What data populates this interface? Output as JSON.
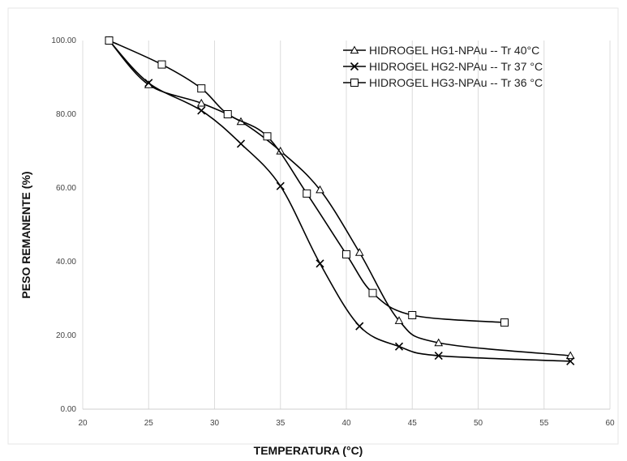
{
  "chart_data": {
    "type": "line",
    "title": "",
    "xlabel": "TEMPERATURA (°C)",
    "ylabel": "PESO REMANENTE  (%)",
    "xlim": [
      20,
      60
    ],
    "ylim": [
      0,
      100
    ],
    "x_ticks": [
      "20",
      "25",
      "30",
      "35",
      "40",
      "45",
      "50",
      "55",
      "60"
    ],
    "y_ticks": [
      "0.00",
      "20.00",
      "40.00",
      "60.00",
      "80.00",
      "100.00"
    ],
    "grid": "vertical",
    "legend_position": "top-right",
    "series": [
      {
        "name": "HIDROGEL HG1-NPAu -- Tr 40°C",
        "marker": "triangle",
        "color": "#000000",
        "x": [
          22,
          25,
          29,
          32,
          35,
          38,
          41,
          44,
          47,
          57
        ],
        "y": [
          100,
          88,
          83,
          78,
          70,
          59.5,
          42.5,
          24,
          18,
          14.5
        ]
      },
      {
        "name": "HIDROGEL HG2-NPAu -- Tr 37 °C",
        "marker": "x",
        "color": "#000000",
        "x": [
          22,
          25,
          29,
          32,
          35,
          38,
          41,
          44,
          47,
          57
        ],
        "y": [
          100,
          88.5,
          81,
          72,
          60.5,
          39.5,
          22.5,
          17,
          14.5,
          13
        ]
      },
      {
        "name": "HIDROGEL HG3-NPAu -- Tr 36 °C",
        "marker": "square",
        "color": "#000000",
        "x": [
          22,
          26,
          29,
          31,
          34,
          37,
          40,
          42,
          45,
          52
        ],
        "y": [
          100,
          93.5,
          87,
          80,
          74,
          58.5,
          42,
          31.5,
          25.5,
          23.5
        ]
      }
    ]
  }
}
